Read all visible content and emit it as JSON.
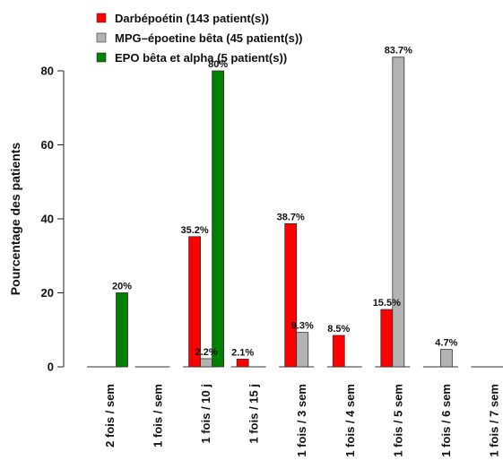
{
  "chart_data": {
    "type": "bar",
    "title": "",
    "xlabel": "",
    "ylabel": "Pourcentage des patients",
    "ylim": [
      0,
      85
    ],
    "yticks": [
      0,
      20,
      40,
      60,
      80
    ],
    "grid": false,
    "legend_position": "top-left",
    "categories": [
      "2 fois / sem",
      "1 fois / sem",
      "1 fois / 10 j",
      "1 fois / 15 j",
      "1 fois / 3 sem",
      "1 fois / 4 sem",
      "1 fois / 5 sem",
      "1 fois / 6 sem",
      "1 fois / 7 sem"
    ],
    "series": [
      {
        "name": "Darbépoétin (143 patient(s))",
        "color": "#ff0000",
        "values": [
          0,
          0,
          35.2,
          2.1,
          38.7,
          8.5,
          15.5,
          0,
          0
        ],
        "labels": [
          "",
          "",
          "35.2%",
          "2.1%",
          "38.7%",
          "8.5%",
          "15.5%",
          "",
          ""
        ]
      },
      {
        "name": "MPG–époetine bêta (45 patient(s))",
        "color": "#b3b3b3",
        "values": [
          0,
          0,
          2.2,
          0,
          9.3,
          0,
          83.7,
          4.7,
          0
        ],
        "labels": [
          "",
          "",
          "2.2%",
          "",
          "9.3%",
          "",
          "83.7%",
          "4.7%",
          ""
        ]
      },
      {
        "name": "EPO bêta et alpha (5 patient(s))",
        "color": "#008000",
        "values": [
          20,
          0,
          80,
          0,
          0,
          0,
          0,
          0,
          0
        ],
        "labels": [
          "20%",
          "",
          "80%",
          "",
          "",
          "",
          "",
          "",
          ""
        ]
      }
    ]
  }
}
